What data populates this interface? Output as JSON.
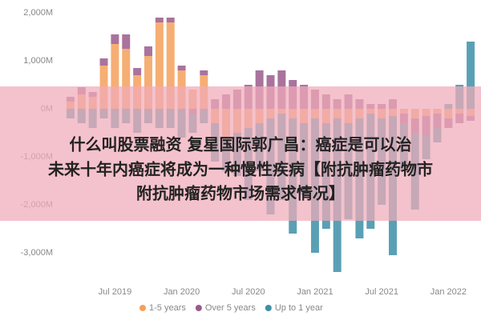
{
  "chart_data": {
    "type": "stacked_bar",
    "categories": [
      null,
      null,
      null,
      null,
      "Jul 2019",
      null,
      null,
      null,
      null,
      null,
      "Jan 2020",
      null,
      null,
      null,
      null,
      null,
      "Jul 2020",
      null,
      null,
      null,
      null,
      null,
      "Jan 2021",
      null,
      null,
      null,
      null,
      null,
      "Jul 2021",
      null,
      null,
      null,
      null,
      null,
      "Jan 2022",
      null,
      null
    ],
    "series": [
      {
        "name": "1-5 years",
        "color": "#f5a05a",
        "values": [
          150,
          300,
          250,
          900,
          1350,
          1250,
          700,
          1100,
          1800,
          1800,
          800,
          400,
          700,
          -300,
          -600,
          -500,
          -400,
          -300,
          -200,
          -100,
          -200,
          -300,
          -200,
          -300,
          -200,
          -300,
          -200,
          -100,
          -200,
          -150,
          -100,
          -200,
          -150,
          -100,
          -200,
          -100,
          -150
        ]
      },
      {
        "name": "Over 5 years",
        "color": "#9a5a8c",
        "values": [
          100,
          150,
          100,
          150,
          200,
          300,
          150,
          200,
          100,
          100,
          100,
          -100,
          100,
          200,
          300,
          400,
          500,
          800,
          700,
          800,
          600,
          500,
          400,
          300,
          200,
          300,
          200,
          100,
          100,
          200,
          -200,
          -300,
          -400,
          -300,
          -200,
          -200,
          -100
        ]
      },
      {
        "name": "Up to 1 year",
        "color": "#3d8fa8",
        "values": [
          -200,
          -300,
          -400,
          -200,
          -400,
          -300,
          -500,
          -300,
          -400,
          -400,
          -600,
          -400,
          -300,
          -800,
          -700,
          -900,
          -1500,
          -1000,
          -2000,
          -1800,
          -2400,
          -1500,
          -2800,
          -2200,
          -3200,
          -2000,
          -2500,
          -2400,
          -1800,
          -2900,
          -1000,
          -1600,
          -500,
          -300,
          100,
          500,
          1400
        ]
      }
    ],
    "ylim": [
      -3400,
      2300
    ],
    "yticks": [
      {
        "value": -3000,
        "label": "-3,000M"
      },
      {
        "value": -2000,
        "label": "-2,000M"
      },
      {
        "value": -1000,
        "label": "-1,000M"
      },
      {
        "value": 0,
        "label": "0M"
      },
      {
        "value": 1000,
        "label": "1,000M"
      },
      {
        "value": 2000,
        "label": "2,000M"
      }
    ],
    "grid": false
  },
  "overlay": {
    "lines": [
      "什么叫股票融资 复星国际郭广昌：癌症是可以治",
      "未来十年内癌症将成为一种慢性疾病【附抗肿瘤药物市",
      "附抗肿瘤药物市场需求情况】"
    ]
  }
}
